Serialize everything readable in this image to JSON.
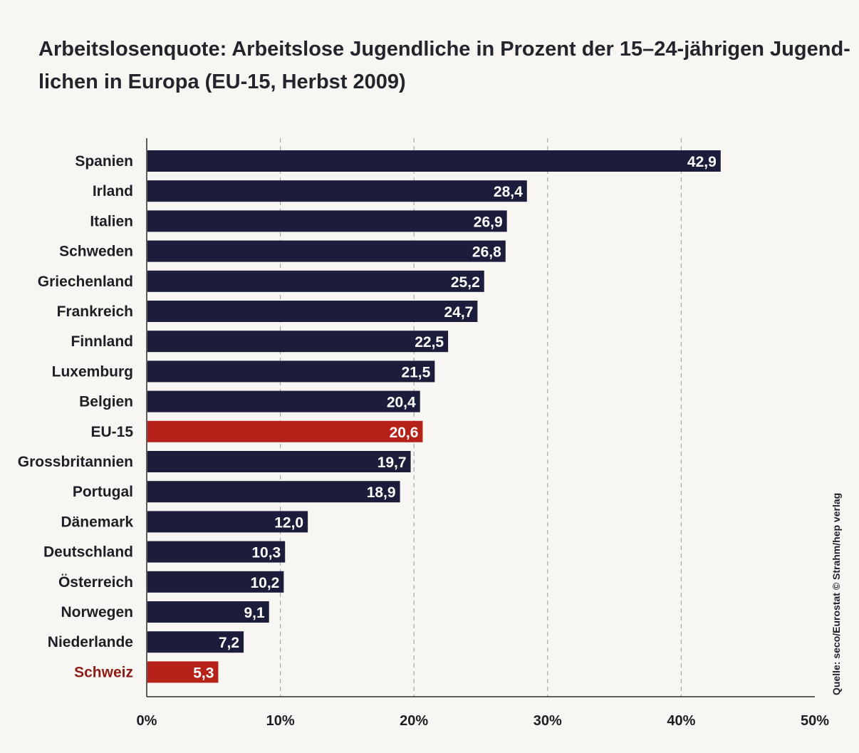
{
  "title_lines": [
    "Arbeitslosenquote: Arbeitslose Jugendliche in Prozent der 15–24-jährigen Jugend-",
    "lichen in Europa (EU-15, Herbst 2009)"
  ],
  "source": "Quelle: seco/Eurostat © Strahm/hep verlag",
  "colors": {
    "bar": "#1b1d3a",
    "highlight_bar": "#b62219",
    "highlight_label": "#8e1c16",
    "label": "#1e1e26",
    "value_text": "#ffffff",
    "grid": "#9a9a9a",
    "axis": "#2a2a2a"
  },
  "chart_data": {
    "type": "bar",
    "orientation": "horizontal",
    "title": "Arbeitslosenquote: Arbeitslose Jugendliche in Prozent der 15–24-jährigen Jugendlichen in Europa (EU-15, Herbst 2009)",
    "categories": [
      "Spanien",
      "Irland",
      "Italien",
      "Schweden",
      "Griechenland",
      "Frankreich",
      "Finnland",
      "Luxemburg",
      "Belgien",
      "EU-15",
      "Grossbritannien",
      "Portugal",
      "Dänemark",
      "Deutschland",
      "Österreich",
      "Norwegen",
      "Niederlande",
      "Schweiz"
    ],
    "values": [
      42.9,
      28.4,
      26.9,
      26.8,
      25.2,
      24.7,
      22.5,
      21.5,
      20.4,
      20.6,
      19.7,
      18.9,
      12.0,
      10.3,
      10.2,
      9.1,
      7.2,
      5.3
    ],
    "value_labels": [
      "42,9",
      "28,4",
      "26,9",
      "26,8",
      "25,2",
      "24,7",
      "22,5",
      "21,5",
      "20,4",
      "20,6",
      "19,7",
      "18,9",
      "12,0",
      "10,3",
      "10,2",
      "9,1",
      "7,2",
      "5,3"
    ],
    "highlighted": [
      "EU-15",
      "Schweiz"
    ],
    "highlighted_label_color": [
      "Schweiz"
    ],
    "xlim": [
      0,
      50
    ],
    "xticks": [
      0,
      10,
      20,
      30,
      40,
      50
    ],
    "xtick_labels": [
      "0%",
      "10%",
      "20%",
      "30%",
      "40%",
      "50%"
    ],
    "grid": "vertical dashed",
    "xlabel": "",
    "ylabel": ""
  }
}
